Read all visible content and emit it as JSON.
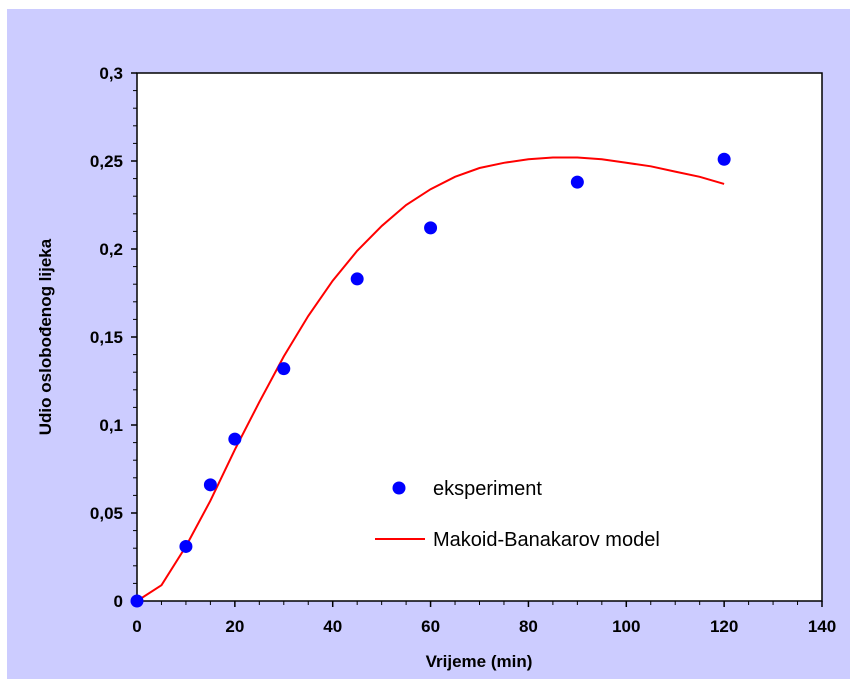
{
  "chart_data": {
    "type": "scatter",
    "xlabel": "Vrijeme (min)",
    "ylabel": "Udio oslobođenog lijeka",
    "xlim": [
      0,
      140
    ],
    "ylim": [
      0,
      0.3
    ],
    "xticks": [
      "0",
      "20",
      "40",
      "60",
      "80",
      "100",
      "120",
      "140"
    ],
    "yticks": [
      "0",
      "0,05",
      "0,1",
      "0,15",
      "0,2",
      "0,25",
      "0,3"
    ],
    "grid": false,
    "legend_position": "bottom-right",
    "series": [
      {
        "name": "eksperiment",
        "kind": "scatter",
        "color": "#0000ff",
        "x": [
          0,
          10,
          15,
          20,
          30,
          45,
          60,
          90,
          120
        ],
        "y": [
          0.0,
          0.031,
          0.066,
          0.092,
          0.132,
          0.183,
          0.212,
          0.238,
          0.251
        ]
      },
      {
        "name": "Makoid-Banakarov model",
        "kind": "line",
        "color": "#ff0000",
        "x": [
          0,
          5,
          10,
          15,
          20,
          25,
          30,
          35,
          40,
          45,
          50,
          55,
          60,
          65,
          70,
          75,
          80,
          85,
          90,
          95,
          100,
          105,
          110,
          115,
          120
        ],
        "y": [
          0.0,
          0.009,
          0.031,
          0.057,
          0.086,
          0.113,
          0.139,
          0.162,
          0.182,
          0.199,
          0.213,
          0.225,
          0.234,
          0.241,
          0.246,
          0.249,
          0.251,
          0.252,
          0.252,
          0.251,
          0.249,
          0.247,
          0.244,
          0.241,
          0.237
        ]
      }
    ]
  },
  "colors": {
    "outer_background": "#ccccff",
    "plot_background": "#ffffff",
    "axis": "#000000"
  }
}
